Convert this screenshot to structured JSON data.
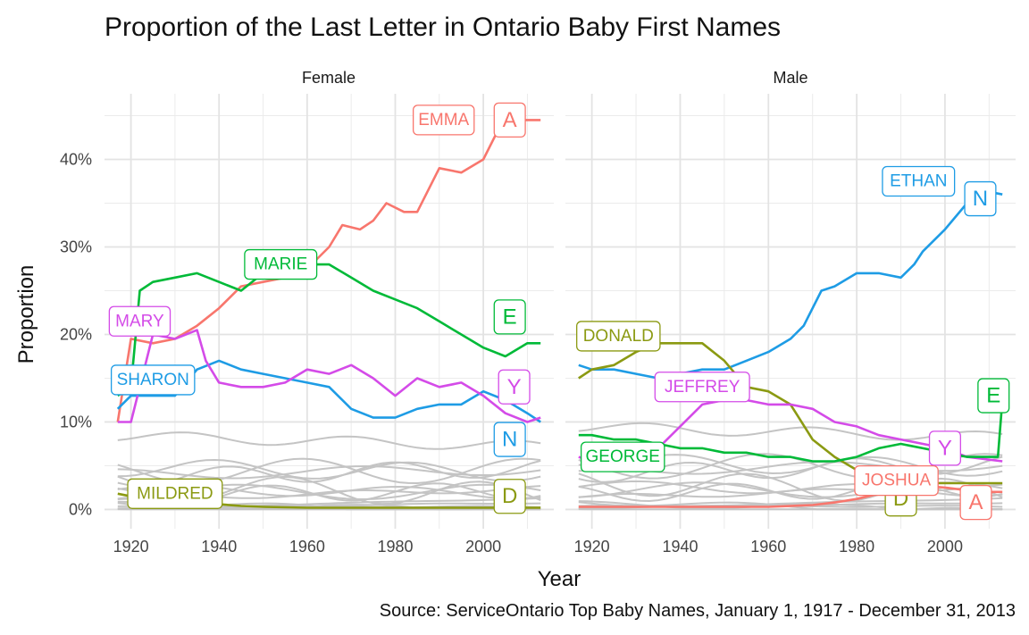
{
  "chart_data": {
    "type": "line",
    "title": "Proportion of the Last Letter in Ontario Baby First Names",
    "xlabel": "Year",
    "ylabel": "Proportion",
    "caption": "Source: ServiceOntario Top Baby Names, January 1, 1917 - December 31, 2013",
    "xlim": [
      1917,
      2013
    ],
    "ylim": [
      0,
      45
    ],
    "x_ticks": [
      1920,
      1940,
      1960,
      1980,
      2000
    ],
    "y_ticks": [
      0,
      10,
      20,
      30,
      40
    ],
    "y_tick_labels": [
      "0%",
      "10%",
      "20%",
      "30%",
      "40%"
    ],
    "grid": true,
    "panels": [
      {
        "facet": "Female",
        "series": [
          {
            "letter": "A",
            "color": "#F8766D",
            "x": [
              1917,
              1920,
              1925,
              1930,
              1935,
              1940,
              1945,
              1950,
              1955,
              1960,
              1965,
              1968,
              1972,
              1975,
              1978,
              1982,
              1985,
              1988,
              1990,
              1995,
              2000,
              2003,
              2006,
              2010,
              2013
            ],
            "y": [
              10,
              19.5,
              19,
              19.5,
              21,
              23,
              25.5,
              26,
              26.5,
              27.5,
              30,
              32.5,
              32,
              33,
              35,
              34,
              34,
              37,
              39,
              38.5,
              40,
              43,
              44.5,
              44.5,
              44.5
            ],
            "label": "EMMA",
            "label_x": 1991,
            "label_y": 44.5,
            "letter_x": 2006,
            "letter_y": 44.5
          },
          {
            "letter": "E",
            "color": "#00BA38",
            "x": [
              1917,
              1920,
              1922,
              1925,
              1930,
              1935,
              1940,
              1945,
              1950,
              1955,
              1960,
              1965,
              1970,
              1975,
              1980,
              1985,
              1990,
              1995,
              2000,
              2005,
              2010,
              2013
            ],
            "y": [
              13,
              14,
              25,
              26,
              26.5,
              27,
              26,
              25,
              27,
              28,
              28,
              28,
              26.5,
              25,
              24,
              23,
              21.5,
              20,
              18.5,
              17.5,
              19,
              19
            ],
            "label": "MARIE",
            "label_x": 1954,
            "label_y": 28,
            "letter_x": 2006,
            "letter_y": 22
          },
          {
            "letter": "N",
            "color": "#1E9CE5",
            "x": [
              1917,
              1920,
              1925,
              1930,
              1935,
              1940,
              1945,
              1950,
              1955,
              1960,
              1965,
              1970,
              1975,
              1980,
              1985,
              1990,
              1995,
              2000,
              2005,
              2010,
              2013
            ],
            "y": [
              11.5,
              13,
              13,
              13,
              16,
              17,
              16,
              15.5,
              15,
              14.5,
              14,
              11.5,
              10.5,
              10.5,
              11.5,
              12,
              12,
              13.5,
              12.5,
              11,
              10
            ],
            "label": "SHARON",
            "label_x": 1925,
            "label_y": 14.8,
            "letter_x": 2006,
            "letter_y": 8
          },
          {
            "letter": "Y",
            "color": "#D44BE8",
            "x": [
              1917,
              1920,
              1925,
              1930,
              1935,
              1937,
              1940,
              1945,
              1950,
              1955,
              1960,
              1965,
              1970,
              1975,
              1980,
              1985,
              1990,
              1995,
              2000,
              2005,
              2010,
              2013
            ],
            "y": [
              10,
              10,
              20,
              19.5,
              20.5,
              17,
              14.5,
              14,
              14,
              14.5,
              16,
              15.5,
              16.5,
              15,
              13,
              15,
              14,
              14.5,
              13,
              11,
              10,
              10.5
            ],
            "label": "MARY",
            "label_x": 1922,
            "label_y": 21.5,
            "letter_x": 2007,
            "letter_y": 14
          },
          {
            "letter": "D",
            "color": "#8B9A12",
            "x": [
              1917,
              1920,
              1925,
              1930,
              1935,
              1940,
              1945,
              1950,
              1960,
              1970,
              1980,
              1990,
              2000,
              2013
            ],
            "y": [
              1.8,
              1.5,
              1.2,
              1,
              0.8,
              0.6,
              0.4,
              0.3,
              0.2,
              0.2,
              0.2,
              0.2,
              0.2,
              0.2
            ],
            "label": "MILDRED",
            "label_x": 1930,
            "label_y": 1.8,
            "letter_x": 2006,
            "letter_y": 1.5
          }
        ]
      },
      {
        "facet": "Male",
        "series": [
          {
            "letter": "N",
            "color": "#1E9CE5",
            "x": [
              1917,
              1920,
              1925,
              1930,
              1935,
              1940,
              1945,
              1950,
              1955,
              1960,
              1965,
              1968,
              1972,
              1975,
              1980,
              1985,
              1990,
              1993,
              1995,
              2000,
              2005,
              2008,
              2013
            ],
            "y": [
              16.5,
              16,
              16,
              15.5,
              15,
              15.5,
              16,
              16,
              17,
              18,
              19.5,
              21,
              25,
              25.5,
              27,
              27,
              26.5,
              28,
              29.5,
              32,
              35,
              36.5,
              36
            ],
            "label": "ETHAN",
            "label_x": 1994,
            "label_y": 37.5,
            "letter_x": 2008,
            "letter_y": 35.5
          },
          {
            "letter": "D",
            "color": "#8B9A12",
            "x": [
              1917,
              1920,
              1925,
              1930,
              1935,
              1940,
              1945,
              1950,
              1955,
              1960,
              1965,
              1970,
              1975,
              1980,
              1985,
              1990,
              1995,
              2000,
              2005,
              2013
            ],
            "y": [
              15,
              16,
              16.5,
              18,
              19,
              19,
              19,
              17,
              14,
              13.5,
              12,
              8,
              6,
              4.5,
              3.5,
              3,
              3,
              3,
              3,
              3
            ],
            "label": "DONALD",
            "label_x": 1926,
            "label_y": 19.8,
            "letter_x": 1990,
            "letter_y": 1.2
          },
          {
            "letter": "Y",
            "color": "#D44BE8",
            "x": [
              1917,
              1920,
              1925,
              1930,
              1935,
              1940,
              1945,
              1950,
              1955,
              1960,
              1965,
              1970,
              1975,
              1980,
              1985,
              1990,
              1995,
              2000,
              2005,
              2013
            ],
            "y": [
              6,
              5.5,
              5.5,
              6,
              7,
              9.5,
              12,
              12.5,
              12.5,
              12,
              12,
              11.5,
              10,
              9.5,
              8.5,
              8,
              7.5,
              7,
              6,
              5.5
            ],
            "label": "JEFFREY",
            "label_x": 1945,
            "label_y": 14,
            "letter_x": 2000,
            "letter_y": 7
          },
          {
            "letter": "E",
            "color": "#00BA38",
            "x": [
              1917,
              1920,
              1925,
              1930,
              1935,
              1940,
              1945,
              1950,
              1955,
              1960,
              1965,
              1970,
              1975,
              1980,
              1985,
              1990,
              1995,
              2000,
              2005,
              2010,
              2012,
              2013
            ],
            "y": [
              8.5,
              8.5,
              8,
              8,
              7.5,
              7,
              7,
              6.5,
              6.5,
              6,
              6,
              5.5,
              5.5,
              6,
              7,
              7.5,
              7,
              6.5,
              6,
              6,
              6,
              12.5
            ],
            "label": "GEORGE",
            "label_x": 1927,
            "label_y": 6,
            "letter_x": 2011,
            "letter_y": 13
          },
          {
            "letter": "A",
            "color": "#F8766D",
            "x": [
              1917,
              1930,
              1950,
              1960,
              1970,
              1975,
              1980,
              1985,
              1990,
              1995,
              2000,
              2005,
              2010,
              2013
            ],
            "y": [
              0.3,
              0.3,
              0.3,
              0.3,
              0.5,
              0.8,
              1.2,
              1.8,
              2.3,
              2.7,
              2.5,
              2.2,
              2,
              2
            ],
            "label": "JOSHUA",
            "label_x": 1989,
            "label_y": 3.3,
            "letter_x": 2007,
            "letter_y": 0.8
          }
        ]
      }
    ]
  }
}
